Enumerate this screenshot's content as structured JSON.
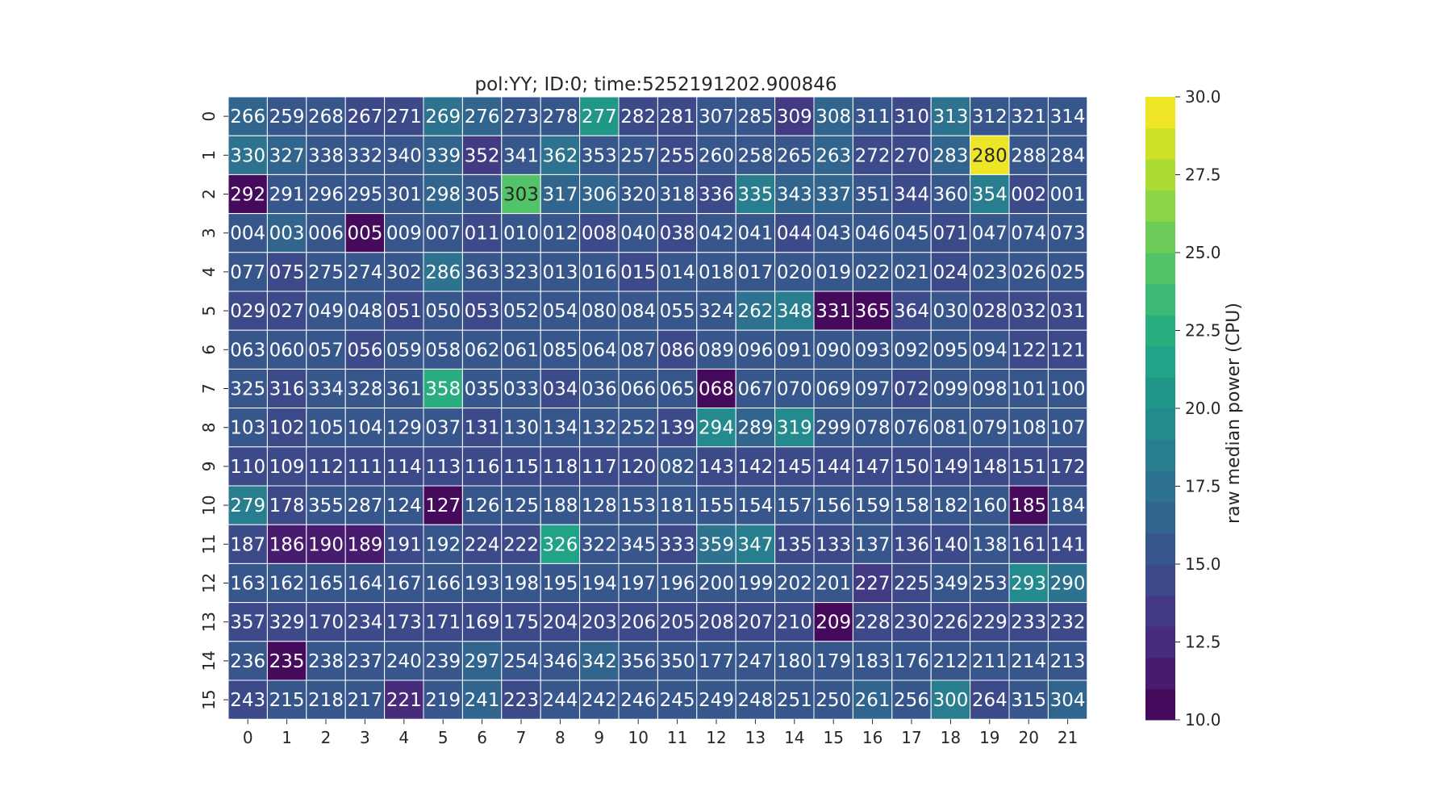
{
  "chart_data": {
    "type": "heatmap",
    "title": "pol:YY; ID:0; time:5252191202.900846",
    "x_categories": [
      "0",
      "1",
      "2",
      "3",
      "4",
      "5",
      "6",
      "7",
      "8",
      "9",
      "10",
      "11",
      "12",
      "13",
      "14",
      "15",
      "16",
      "17",
      "18",
      "19",
      "20",
      "21"
    ],
    "y_categories": [
      "0",
      "1",
      "2",
      "3",
      "4",
      "5",
      "6",
      "7",
      "8",
      "9",
      "10",
      "11",
      "12",
      "13",
      "14",
      "15"
    ],
    "annotations": [
      [
        "266",
        "259",
        "268",
        "267",
        "271",
        "269",
        "276",
        "273",
        "278",
        "277",
        "282",
        "281",
        "307",
        "285",
        "309",
        "308",
        "311",
        "310",
        "313",
        "312",
        "321",
        "314"
      ],
      [
        "330",
        "327",
        "338",
        "332",
        "340",
        "339",
        "352",
        "341",
        "362",
        "353",
        "257",
        "255",
        "260",
        "258",
        "265",
        "263",
        "272",
        "270",
        "283",
        "280",
        "288",
        "284"
      ],
      [
        "292",
        "291",
        "296",
        "295",
        "301",
        "298",
        "305",
        "303",
        "317",
        "306",
        "320",
        "318",
        "336",
        "335",
        "343",
        "337",
        "351",
        "344",
        "360",
        "354",
        "002",
        "001"
      ],
      [
        "004",
        "003",
        "006",
        "005",
        "009",
        "007",
        "011",
        "010",
        "012",
        "008",
        "040",
        "038",
        "042",
        "041",
        "044",
        "043",
        "046",
        "045",
        "071",
        "047",
        "074",
        "073"
      ],
      [
        "077",
        "075",
        "275",
        "274",
        "302",
        "286",
        "363",
        "323",
        "013",
        "016",
        "015",
        "014",
        "018",
        "017",
        "020",
        "019",
        "022",
        "021",
        "024",
        "023",
        "026",
        "025"
      ],
      [
        "029",
        "027",
        "049",
        "048",
        "051",
        "050",
        "053",
        "052",
        "054",
        "080",
        "084",
        "055",
        "324",
        "262",
        "348",
        "331",
        "365",
        "364",
        "030",
        "028",
        "032",
        "031"
      ],
      [
        "063",
        "060",
        "057",
        "056",
        "059",
        "058",
        "062",
        "061",
        "085",
        "064",
        "087",
        "086",
        "089",
        "096",
        "091",
        "090",
        "093",
        "092",
        "095",
        "094",
        "122",
        "121"
      ],
      [
        "325",
        "316",
        "334",
        "328",
        "361",
        "358",
        "035",
        "033",
        "034",
        "036",
        "066",
        "065",
        "068",
        "067",
        "070",
        "069",
        "097",
        "072",
        "099",
        "098",
        "101",
        "100"
      ],
      [
        "103",
        "102",
        "105",
        "104",
        "129",
        "037",
        "131",
        "130",
        "134",
        "132",
        "252",
        "139",
        "294",
        "289",
        "319",
        "299",
        "078",
        "076",
        "081",
        "079",
        "108",
        "107"
      ],
      [
        "110",
        "109",
        "112",
        "111",
        "114",
        "113",
        "116",
        "115",
        "118",
        "117",
        "120",
        "082",
        "143",
        "142",
        "145",
        "144",
        "147",
        "150",
        "149",
        "148",
        "151",
        "172"
      ],
      [
        "279",
        "178",
        "355",
        "287",
        "124",
        "127",
        "126",
        "125",
        "188",
        "128",
        "153",
        "181",
        "155",
        "154",
        "157",
        "156",
        "159",
        "158",
        "182",
        "160",
        "185",
        "184"
      ],
      [
        "187",
        "186",
        "190",
        "189",
        "191",
        "192",
        "224",
        "222",
        "326",
        "322",
        "345",
        "333",
        "359",
        "347",
        "135",
        "133",
        "137",
        "136",
        "140",
        "138",
        "161",
        "141"
      ],
      [
        "163",
        "162",
        "165",
        "164",
        "167",
        "166",
        "193",
        "198",
        "195",
        "194",
        "197",
        "196",
        "200",
        "199",
        "202",
        "201",
        "227",
        "225",
        "349",
        "253",
        "293",
        "290"
      ],
      [
        "357",
        "329",
        "170",
        "234",
        "173",
        "171",
        "169",
        "175",
        "204",
        "203",
        "206",
        "205",
        "208",
        "207",
        "210",
        "209",
        "228",
        "230",
        "226",
        "229",
        "233",
        "232"
      ],
      [
        "236",
        "235",
        "238",
        "237",
        "240",
        "239",
        "297",
        "254",
        "346",
        "342",
        "356",
        "350",
        "177",
        "247",
        "180",
        "179",
        "183",
        "176",
        "212",
        "211",
        "214",
        "213"
      ],
      [
        "243",
        "215",
        "218",
        "217",
        "221",
        "219",
        "241",
        "223",
        "244",
        "242",
        "246",
        "245",
        "249",
        "248",
        "251",
        "250",
        "261",
        "256",
        "300",
        "264",
        "315",
        "304"
      ]
    ],
    "values": [
      [
        16.5,
        15.0,
        15.5,
        14.0,
        14.0,
        17.0,
        16.0,
        15.0,
        15.0,
        20.0,
        14.0,
        14.0,
        15.0,
        15.0,
        13.0,
        16.0,
        15.0,
        14.0,
        17.0,
        15.0,
        15.0,
        15.0
      ],
      [
        17.5,
        16.5,
        15.5,
        15.5,
        15.0,
        16.0,
        13.5,
        15.0,
        17.0,
        15.0,
        15.5,
        14.5,
        15.0,
        15.0,
        15.0,
        16.5,
        14.5,
        14.0,
        16.0,
        29.5,
        15.0,
        15.0
      ],
      [
        10.0,
        15.0,
        15.0,
        15.0,
        15.5,
        16.5,
        15.5,
        24.5,
        16.0,
        16.0,
        15.0,
        15.0,
        14.5,
        18.5,
        16.0,
        16.5,
        15.5,
        14.5,
        15.5,
        18.5,
        14.5,
        15.0
      ],
      [
        15.0,
        16.0,
        15.0,
        10.5,
        15.0,
        15.0,
        14.5,
        15.0,
        15.0,
        14.5,
        15.0,
        14.5,
        15.0,
        15.0,
        14.5,
        15.0,
        15.0,
        15.0,
        14.5,
        15.0,
        15.0,
        15.0
      ],
      [
        15.0,
        14.5,
        15.0,
        15.5,
        15.0,
        17.0,
        15.0,
        15.0,
        15.0,
        15.0,
        14.5,
        15.0,
        15.5,
        15.0,
        15.0,
        15.5,
        15.0,
        15.0,
        14.5,
        15.0,
        15.0,
        15.0
      ],
      [
        14.5,
        14.5,
        15.0,
        15.0,
        14.5,
        15.0,
        14.0,
        15.0,
        15.0,
        15.0,
        15.0,
        15.0,
        15.0,
        17.5,
        18.5,
        10.0,
        10.5,
        14.5,
        15.0,
        14.5,
        14.5,
        14.5
      ],
      [
        15.0,
        15.0,
        15.0,
        14.5,
        15.0,
        15.0,
        15.0,
        15.0,
        15.0,
        15.0,
        15.0,
        14.5,
        15.0,
        15.5,
        15.0,
        15.0,
        15.0,
        15.0,
        15.0,
        15.0,
        14.5,
        14.5
      ],
      [
        15.5,
        14.0,
        15.0,
        15.0,
        15.5,
        22.0,
        15.0,
        15.0,
        14.5,
        15.0,
        15.0,
        15.0,
        10.0,
        15.0,
        15.0,
        15.0,
        15.5,
        14.5,
        15.0,
        15.0,
        15.0,
        15.0
      ],
      [
        15.0,
        14.5,
        15.0,
        15.0,
        15.0,
        15.0,
        14.5,
        15.0,
        15.0,
        15.0,
        15.0,
        14.5,
        19.5,
        16.0,
        19.0,
        15.0,
        15.0,
        15.0,
        15.0,
        15.0,
        15.0,
        15.0
      ],
      [
        14.5,
        14.5,
        14.5,
        14.5,
        14.5,
        14.5,
        14.5,
        14.5,
        14.5,
        14.0,
        14.0,
        15.0,
        14.5,
        14.5,
        14.5,
        14.5,
        14.5,
        14.5,
        14.5,
        14.0,
        14.5,
        14.5
      ],
      [
        18.5,
        14.5,
        15.0,
        15.0,
        15.5,
        10.5,
        15.0,
        15.0,
        15.5,
        15.0,
        15.0,
        15.0,
        15.0,
        15.0,
        15.0,
        15.0,
        15.0,
        15.0,
        15.0,
        15.0,
        10.0,
        15.5
      ],
      [
        14.5,
        11.0,
        11.0,
        11.0,
        14.5,
        15.0,
        14.5,
        14.5,
        21.0,
        15.5,
        15.0,
        14.5,
        17.5,
        18.0,
        14.5,
        14.5,
        15.0,
        14.5,
        14.5,
        15.0,
        14.5,
        14.5
      ],
      [
        15.0,
        15.0,
        15.0,
        15.0,
        15.0,
        15.0,
        15.0,
        15.0,
        15.0,
        15.0,
        15.0,
        15.0,
        15.0,
        15.0,
        15.0,
        15.0,
        13.0,
        14.5,
        15.0,
        15.0,
        19.0,
        17.5
      ],
      [
        14.5,
        14.5,
        14.5,
        14.5,
        14.5,
        14.5,
        14.5,
        14.5,
        14.5,
        14.5,
        14.5,
        14.5,
        14.5,
        14.5,
        14.5,
        10.0,
        14.5,
        14.5,
        14.5,
        14.5,
        14.5,
        14.5
      ],
      [
        15.0,
        10.5,
        15.0,
        15.0,
        15.0,
        15.0,
        16.5,
        15.0,
        15.0,
        16.0,
        15.0,
        15.0,
        15.0,
        15.0,
        15.0,
        15.0,
        15.0,
        15.0,
        15.0,
        15.0,
        15.0,
        15.0
      ],
      [
        14.0,
        15.0,
        15.0,
        15.0,
        12.5,
        15.0,
        16.0,
        14.0,
        15.0,
        15.0,
        15.0,
        15.0,
        15.0,
        15.0,
        15.0,
        15.0,
        16.5,
        15.0,
        18.0,
        14.0,
        15.5,
        16.5
      ]
    ],
    "colorbar": {
      "label": "raw median power (CPU)",
      "range": [
        10.0,
        30.0
      ],
      "ticks": [
        "30.0",
        "27.5",
        "25.0",
        "22.5",
        "20.0",
        "17.5",
        "15.0",
        "12.5",
        "10.0"
      ],
      "colormap": "viridis",
      "levels": 20
    },
    "cell_border_color": "#ffffff",
    "legend": "colorbar-right"
  }
}
